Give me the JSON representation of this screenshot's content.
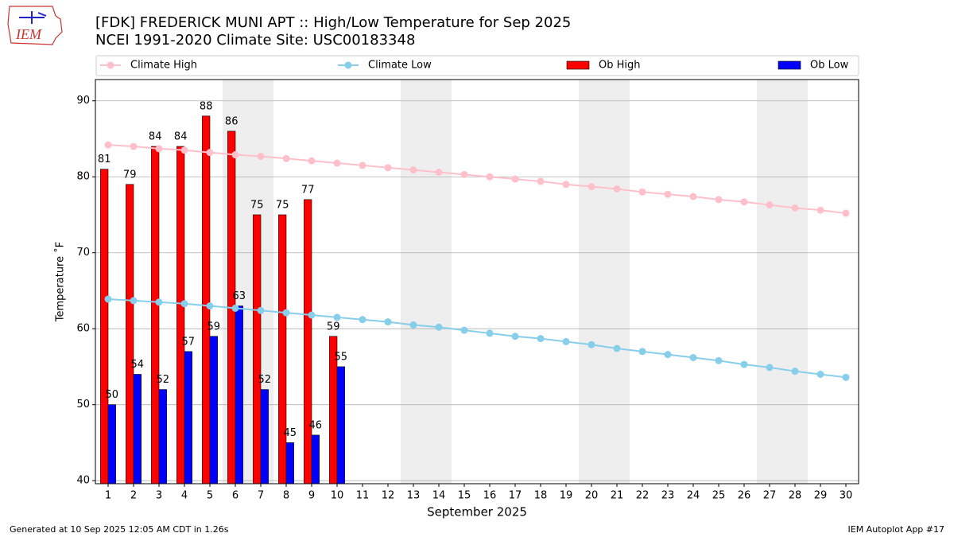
{
  "chart_data": {
    "type": "bar",
    "title": "[FDK] FREDERICK MUNI APT :: High/Low Temperature for Sep 2025",
    "subtitle": "NCEI 1991-2020 Climate Site: USC00183348",
    "logo": "IEM",
    "x_label": "September 2025",
    "y_label": "Temperature ˚F",
    "x": [
      1,
      2,
      3,
      4,
      5,
      6,
      7,
      8,
      9,
      10,
      11,
      12,
      13,
      14,
      15,
      16,
      17,
      18,
      19,
      20,
      21,
      22,
      23,
      24,
      25,
      26,
      27,
      28,
      29,
      30
    ],
    "xlim": [
      0.5,
      30.5
    ],
    "xticks": [
      1,
      2,
      3,
      4,
      5,
      6,
      7,
      8,
      9,
      10,
      11,
      12,
      13,
      14,
      15,
      16,
      17,
      18,
      19,
      20,
      21,
      22,
      23,
      24,
      25,
      26,
      27,
      28,
      29,
      30
    ],
    "ylim": [
      39.6,
      92.8
    ],
    "yticks": [
      40,
      50,
      60,
      70,
      80,
      90
    ],
    "grid": true,
    "shaded_days": [
      6,
      7,
      13,
      14,
      20,
      21,
      27,
      28
    ],
    "series": [
      {
        "name": "Climate High",
        "type": "line",
        "color": "#ffc0cb",
        "values": [
          84.2,
          84.0,
          83.7,
          83.5,
          83.2,
          82.9,
          82.7,
          82.4,
          82.1,
          81.8,
          81.5,
          81.2,
          80.9,
          80.6,
          80.3,
          80.0,
          79.7,
          79.4,
          79.0,
          78.7,
          78.4,
          78.0,
          77.7,
          77.4,
          77.0,
          76.7,
          76.3,
          75.9,
          75.6,
          75.2
        ]
      },
      {
        "name": "Climate Low",
        "type": "line",
        "color": "#87ceeb",
        "values": [
          63.9,
          63.7,
          63.5,
          63.3,
          63.0,
          62.7,
          62.4,
          62.1,
          61.8,
          61.5,
          61.2,
          60.9,
          60.5,
          60.2,
          59.8,
          59.4,
          59.0,
          58.7,
          58.3,
          57.9,
          57.4,
          57.0,
          56.6,
          56.2,
          55.8,
          55.3,
          54.9,
          54.4,
          54.0,
          53.6
        ]
      },
      {
        "name": "Ob High",
        "type": "bar",
        "color": "#ff0000",
        "values": [
          81,
          79,
          84,
          84,
          88,
          86,
          75,
          75,
          77,
          59,
          null,
          null,
          null,
          null,
          null,
          null,
          null,
          null,
          null,
          null,
          null,
          null,
          null,
          null,
          null,
          null,
          null,
          null,
          null,
          null
        ]
      },
      {
        "name": "Ob Low",
        "type": "bar",
        "color": "#0000ff",
        "values": [
          50,
          54,
          52,
          57,
          59,
          63,
          52,
          45,
          46,
          55,
          null,
          null,
          null,
          null,
          null,
          null,
          null,
          null,
          null,
          null,
          null,
          null,
          null,
          null,
          null,
          null,
          null,
          null,
          null,
          null
        ]
      }
    ],
    "footer_left": "Generated at 10 Sep 2025 12:05 AM CDT in 1.26s",
    "footer_right": "IEM Autoplot App #17"
  }
}
